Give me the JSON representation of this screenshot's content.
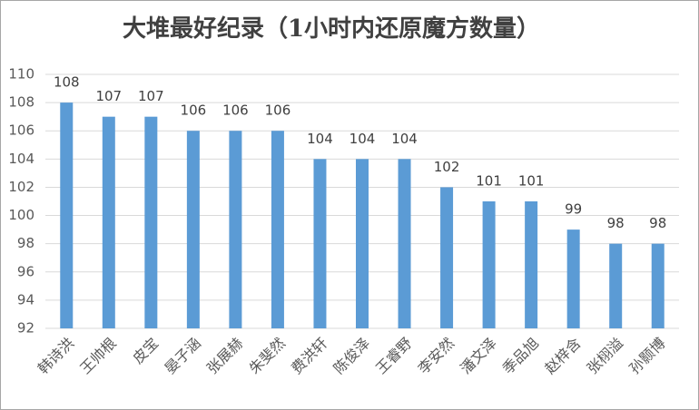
{
  "chart_data": {
    "type": "bar",
    "title": "大堆最好纪录（1小时内还原魔方数量）",
    "categories": [
      "韩诗洪",
      "王帅根",
      "皮宝",
      "晏子涵",
      "张展赫",
      "朱斐然",
      "费洪轩",
      "陈俊泽",
      "王睿野",
      "李安然",
      "潘文泽",
      "季品旭",
      "赵梓含",
      "张栩溢",
      "孙颢博"
    ],
    "values": [
      108,
      107,
      107,
      106,
      106,
      106,
      104,
      104,
      104,
      102,
      101,
      101,
      99,
      98,
      98
    ],
    "color": "#5b9bd5",
    "ylim": [
      92,
      110
    ],
    "yticks": [
      92,
      94,
      96,
      98,
      100,
      102,
      104,
      106,
      108,
      110
    ],
    "grid": true
  }
}
